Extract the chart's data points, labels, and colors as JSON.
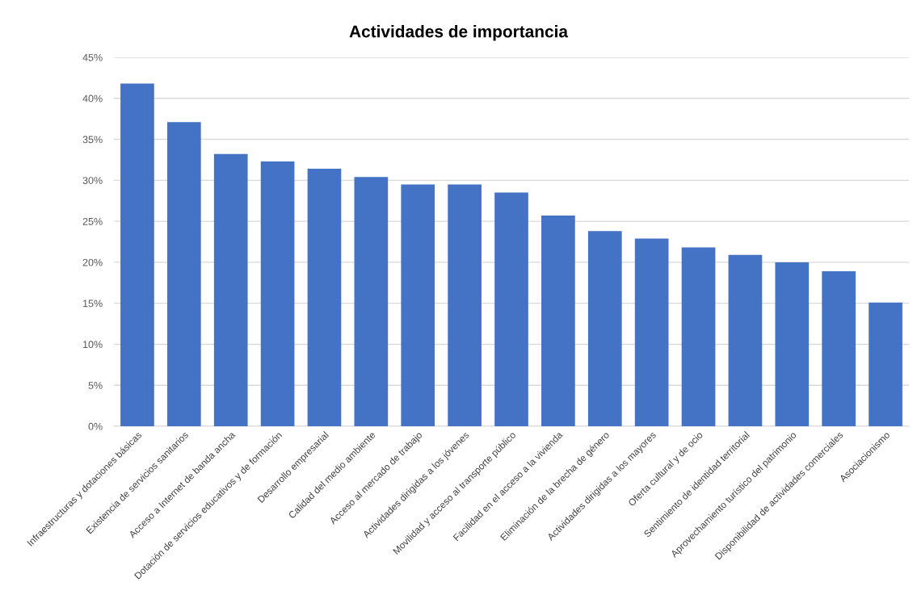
{
  "chart_data": {
    "type": "bar",
    "title": "Actividades de importancia",
    "categories": [
      "Infraestructuras y dotaciones básicas",
      "Existencia de servicios sanitarios",
      "Acceso a Internet de banda ancha",
      "Dotación de servicios educativos y de formación",
      "Desarrollo empresarial",
      "Calidad del medio ambiente",
      "Acceso al mercado de trabajo",
      "Actividades dirigidas a los jóvenes",
      "Movilidad y acceso al transporte público",
      "Facilidad en el acceso a la vivienda",
      "Eliminación de la brecha de género",
      "Actividades dirigidas a los mayores",
      "Oferta cultural y de ocio",
      "Sentimiento de identidad territorial",
      "Aprovechamiento turístico del patrimonio",
      "Disponibilidad de actividades comerciales",
      "Asociacionismo"
    ],
    "values": [
      41.8,
      37.1,
      33.2,
      32.3,
      31.4,
      30.4,
      29.5,
      29.5,
      28.5,
      25.7,
      23.8,
      22.9,
      21.8,
      20.9,
      20.0,
      18.9,
      15.1
    ],
    "color": "#4472c4",
    "ylim": [
      0,
      45
    ],
    "yticks": [
      {
        "value": 0,
        "label": "0%"
      },
      {
        "value": 5,
        "label": "5%"
      },
      {
        "value": 10,
        "label": "10%"
      },
      {
        "value": 15,
        "label": "15%"
      },
      {
        "value": 20,
        "label": "20%"
      },
      {
        "value": 25,
        "label": "25%"
      },
      {
        "value": 30,
        "label": "30%"
      },
      {
        "value": 35,
        "label": "35%"
      },
      {
        "value": 40,
        "label": "40%"
      },
      {
        "value": 45,
        "label": "45%"
      }
    ],
    "grid": "y",
    "legend": false
  }
}
